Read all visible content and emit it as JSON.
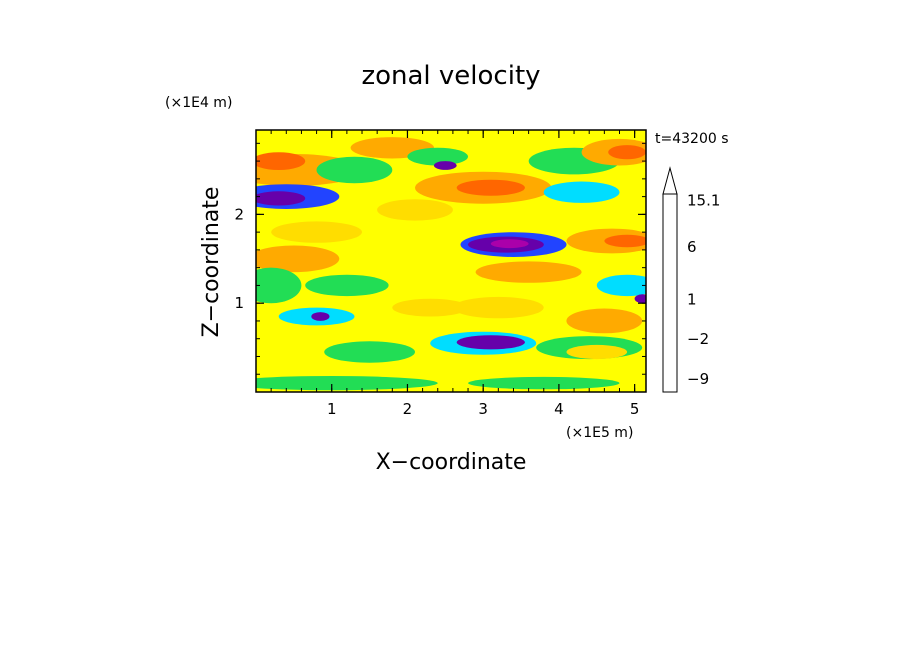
{
  "chart_data": {
    "type": "heatmap",
    "title": "zonal velocity",
    "xlabel": "X−coordinate",
    "ylabel": "Z−coordinate",
    "x_unit": "(×1E5 m)",
    "y_unit": "(×1E4 m)",
    "time_label": "t=43200 s",
    "xlim": [
      0,
      5.15
    ],
    "ylim": [
      0,
      2.95
    ],
    "x_ticks": [
      1,
      2,
      3,
      4,
      5
    ],
    "x_tick_labels": [
      "1",
      "2",
      "3",
      "4",
      "5"
    ],
    "y_ticks": [
      1,
      2
    ],
    "y_tick_labels": [
      "1",
      "2"
    ],
    "grid": false,
    "colorbar": {
      "levels": [
        -12,
        -9,
        -6,
        -3,
        -2,
        -1,
        0,
        1,
        2,
        3,
        4,
        6,
        9,
        12,
        15.1
      ],
      "colors": [
        "#ee00aa",
        "#aa00aa",
        "#6600aa",
        "#0000cc",
        "#2244ff",
        "#00ddff",
        "#22dd55",
        "#ddff33",
        "#ffff00",
        "#ffdd00",
        "#ffaa00",
        "#ff6600",
        "#ff2222",
        "#ff8888",
        "#ffcccc"
      ],
      "tick_labels": [
        {
          "value": -9,
          "label": "−9"
        },
        {
          "value": -2,
          "label": "−2"
        },
        {
          "value": 1,
          "label": "1"
        },
        {
          "value": 6,
          "label": "6"
        },
        {
          "value": 15.1,
          "label": "15.1"
        }
      ],
      "extend": "max"
    },
    "background_level": 2,
    "features": [
      {
        "x": 0.5,
        "z": 2.5,
        "rx": 0.9,
        "rz": 0.18,
        "v": 4
      },
      {
        "x": 0.3,
        "z": 2.6,
        "rx": 0.35,
        "rz": 0.1,
        "v": 6
      },
      {
        "x": 0.4,
        "z": 2.2,
        "rx": 0.7,
        "rz": 0.14,
        "v": -2
      },
      {
        "x": 0.3,
        "z": 2.18,
        "rx": 0.35,
        "rz": 0.08,
        "v": -5
      },
      {
        "x": 1.3,
        "z": 2.5,
        "rx": 0.5,
        "rz": 0.15,
        "v": 0
      },
      {
        "x": 1.8,
        "z": 2.75,
        "rx": 0.55,
        "rz": 0.12,
        "v": 4
      },
      {
        "x": 2.4,
        "z": 2.65,
        "rx": 0.4,
        "rz": 0.1,
        "v": 0
      },
      {
        "x": 2.5,
        "z": 2.55,
        "rx": 0.15,
        "rz": 0.05,
        "v": -5
      },
      {
        "x": 3.0,
        "z": 2.3,
        "rx": 0.9,
        "rz": 0.18,
        "v": 4
      },
      {
        "x": 3.1,
        "z": 2.3,
        "rx": 0.45,
        "rz": 0.09,
        "v": 6
      },
      {
        "x": 4.2,
        "z": 2.6,
        "rx": 0.6,
        "rz": 0.15,
        "v": 0
      },
      {
        "x": 4.8,
        "z": 2.7,
        "rx": 0.5,
        "rz": 0.15,
        "v": 4
      },
      {
        "x": 4.9,
        "z": 2.7,
        "rx": 0.25,
        "rz": 0.08,
        "v": 6
      },
      {
        "x": 4.3,
        "z": 2.25,
        "rx": 0.5,
        "rz": 0.12,
        "v": -1
      },
      {
        "x": 2.1,
        "z": 2.05,
        "rx": 0.5,
        "rz": 0.12,
        "v": 3
      },
      {
        "x": 0.8,
        "z": 1.8,
        "rx": 0.6,
        "rz": 0.12,
        "v": 3
      },
      {
        "x": 3.4,
        "z": 1.66,
        "rx": 0.7,
        "rz": 0.14,
        "v": -2
      },
      {
        "x": 3.3,
        "z": 1.66,
        "rx": 0.5,
        "rz": 0.09,
        "v": -5
      },
      {
        "x": 3.35,
        "z": 1.67,
        "rx": 0.25,
        "rz": 0.05,
        "v": -8
      },
      {
        "x": 4.7,
        "z": 1.7,
        "rx": 0.6,
        "rz": 0.14,
        "v": 4
      },
      {
        "x": 4.9,
        "z": 1.7,
        "rx": 0.3,
        "rz": 0.07,
        "v": 6
      },
      {
        "x": 0.5,
        "z": 1.5,
        "rx": 0.6,
        "rz": 0.15,
        "v": 4
      },
      {
        "x": 0.2,
        "z": 1.2,
        "rx": 0.4,
        "rz": 0.2,
        "v": 0
      },
      {
        "x": 1.2,
        "z": 1.2,
        "rx": 0.55,
        "rz": 0.12,
        "v": 0
      },
      {
        "x": 3.6,
        "z": 1.35,
        "rx": 0.7,
        "rz": 0.12,
        "v": 4
      },
      {
        "x": 4.9,
        "z": 1.2,
        "rx": 0.4,
        "rz": 0.12,
        "v": -1
      },
      {
        "x": 5.1,
        "z": 1.05,
        "rx": 0.1,
        "rz": 0.05,
        "v": -4
      },
      {
        "x": 0.8,
        "z": 0.85,
        "rx": 0.5,
        "rz": 0.1,
        "v": -1
      },
      {
        "x": 0.85,
        "z": 0.85,
        "rx": 0.12,
        "rz": 0.05,
        "v": -4
      },
      {
        "x": 2.3,
        "z": 0.95,
        "rx": 0.5,
        "rz": 0.1,
        "v": 3
      },
      {
        "x": 3.2,
        "z": 0.95,
        "rx": 0.6,
        "rz": 0.12,
        "v": 3
      },
      {
        "x": 4.6,
        "z": 0.8,
        "rx": 0.5,
        "rz": 0.14,
        "v": 4
      },
      {
        "x": 3.0,
        "z": 0.55,
        "rx": 0.7,
        "rz": 0.13,
        "v": -1
      },
      {
        "x": 3.1,
        "z": 0.56,
        "rx": 0.45,
        "rz": 0.08,
        "v": -5
      },
      {
        "x": 1.5,
        "z": 0.45,
        "rx": 0.6,
        "rz": 0.12,
        "v": 0
      },
      {
        "x": 4.4,
        "z": 0.5,
        "rx": 0.7,
        "rz": 0.13,
        "v": 0
      },
      {
        "x": 4.5,
        "z": 0.45,
        "rx": 0.4,
        "rz": 0.08,
        "v": 3
      },
      {
        "x": 1.0,
        "z": 0.1,
        "rx": 1.4,
        "rz": 0.08,
        "v": 0
      },
      {
        "x": 3.8,
        "z": 0.1,
        "rx": 1.0,
        "rz": 0.07,
        "v": 0
      }
    ]
  }
}
